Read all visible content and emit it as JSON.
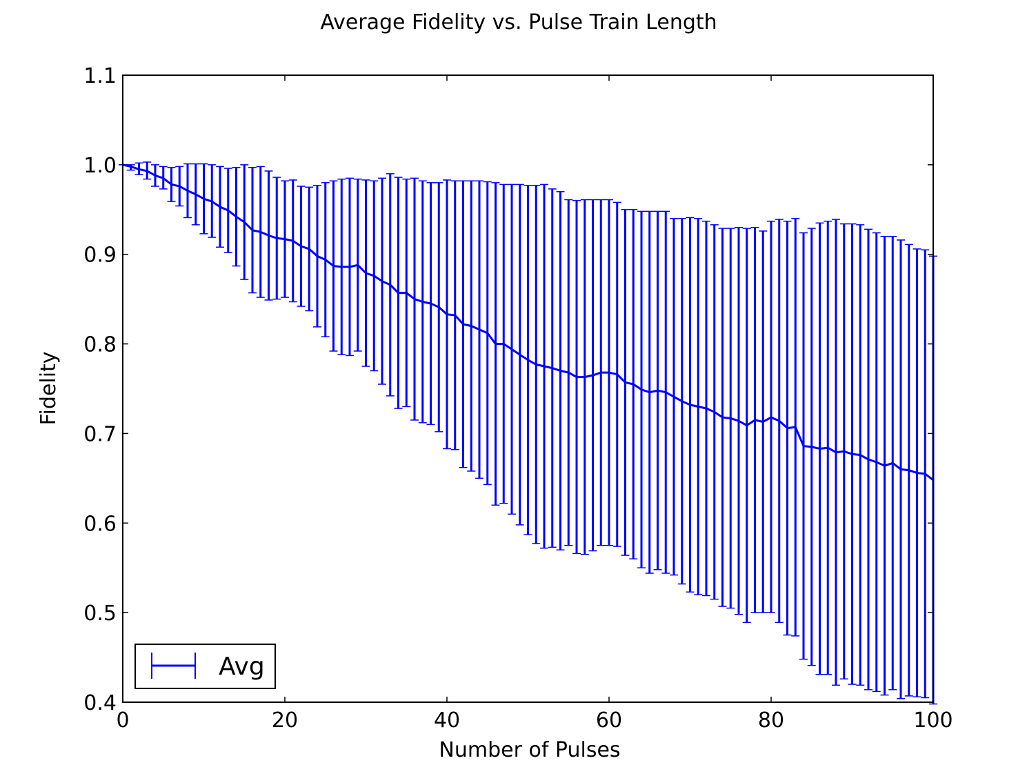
{
  "chart_data": {
    "type": "line",
    "title": "Average Fidelity vs. Pulse Train Length",
    "xlabel": "Number of Pulses",
    "ylabel": "Fidelity",
    "xlim": [
      0,
      100
    ],
    "ylim": [
      0.4,
      1.1
    ],
    "xticks": [
      "0",
      "20",
      "40",
      "60",
      "80",
      "100"
    ],
    "yticks": [
      "0.4",
      "0.5",
      "0.6",
      "0.7",
      "0.8",
      "0.9",
      "1.0",
      "1.1"
    ],
    "grid": false,
    "legend_position": "lower-left",
    "series_color": "#0000ff",
    "series": [
      {
        "name": "Avg",
        "x": [
          0,
          1,
          2,
          3,
          4,
          5,
          6,
          7,
          8,
          9,
          10,
          11,
          12,
          13,
          14,
          15,
          16,
          17,
          18,
          19,
          20,
          21,
          22,
          23,
          24,
          25,
          26,
          27,
          28,
          29,
          30,
          31,
          32,
          33,
          34,
          35,
          36,
          37,
          38,
          39,
          40,
          41,
          42,
          43,
          44,
          45,
          46,
          47,
          48,
          49,
          50,
          51,
          52,
          53,
          54,
          55,
          56,
          57,
          58,
          59,
          60,
          61,
          62,
          63,
          64,
          65,
          66,
          67,
          68,
          69,
          70,
          71,
          72,
          73,
          74,
          75,
          76,
          77,
          78,
          79,
          80,
          81,
          82,
          83,
          84,
          85,
          86,
          87,
          88,
          89,
          90,
          91,
          92,
          93,
          94,
          95,
          96,
          97,
          98,
          99,
          100
        ],
        "y": [
          1.0,
          0.998,
          0.995,
          0.993,
          0.988,
          0.985,
          0.978,
          0.976,
          0.971,
          0.967,
          0.962,
          0.959,
          0.953,
          0.949,
          0.942,
          0.936,
          0.927,
          0.925,
          0.921,
          0.918,
          0.917,
          0.915,
          0.909,
          0.906,
          0.898,
          0.894,
          0.887,
          0.886,
          0.886,
          0.888,
          0.879,
          0.876,
          0.87,
          0.866,
          0.857,
          0.857,
          0.85,
          0.847,
          0.845,
          0.841,
          0.833,
          0.832,
          0.822,
          0.82,
          0.816,
          0.812,
          0.8,
          0.8,
          0.794,
          0.788,
          0.782,
          0.777,
          0.775,
          0.773,
          0.77,
          0.768,
          0.763,
          0.763,
          0.765,
          0.768,
          0.768,
          0.766,
          0.757,
          0.755,
          0.749,
          0.746,
          0.748,
          0.746,
          0.741,
          0.736,
          0.732,
          0.73,
          0.728,
          0.724,
          0.718,
          0.717,
          0.714,
          0.709,
          0.715,
          0.713,
          0.718,
          0.714,
          0.706,
          0.707,
          0.686,
          0.685,
          0.683,
          0.684,
          0.679,
          0.68,
          0.677,
          0.676,
          0.671,
          0.668,
          0.664,
          0.667,
          0.66,
          0.659,
          0.656,
          0.655,
          0.648
        ],
        "err_upper": [
          1.0,
          1.0,
          1.002,
          1.003,
          1.0,
          0.998,
          0.997,
          0.998,
          1.001,
          1.001,
          1.001,
          1.0,
          0.998,
          0.996,
          0.997,
          1.0,
          0.997,
          0.998,
          0.993,
          0.986,
          0.982,
          0.983,
          0.976,
          0.975,
          0.977,
          0.98,
          0.982,
          0.984,
          0.985,
          0.984,
          0.983,
          0.982,
          0.985,
          0.99,
          0.986,
          0.984,
          0.985,
          0.982,
          0.98,
          0.98,
          0.983,
          0.982,
          0.982,
          0.982,
          0.982,
          0.981,
          0.98,
          0.978,
          0.978,
          0.978,
          0.977,
          0.977,
          0.978,
          0.973,
          0.97,
          0.961,
          0.96,
          0.961,
          0.961,
          0.961,
          0.961,
          0.958,
          0.95,
          0.95,
          0.948,
          0.948,
          0.948,
          0.948,
          0.94,
          0.94,
          0.941,
          0.94,
          0.937,
          0.933,
          0.929,
          0.929,
          0.93,
          0.929,
          0.93,
          0.926,
          0.937,
          0.939,
          0.937,
          0.94,
          0.924,
          0.929,
          0.935,
          0.937,
          0.939,
          0.934,
          0.934,
          0.933,
          0.928,
          0.924,
          0.92,
          0.92,
          0.916,
          0.911,
          0.906,
          0.905,
          0.898
        ],
        "err_lower": [
          1.0,
          0.994,
          0.989,
          0.984,
          0.976,
          0.973,
          0.959,
          0.954,
          0.941,
          0.933,
          0.923,
          0.919,
          0.908,
          0.902,
          0.887,
          0.872,
          0.857,
          0.852,
          0.849,
          0.85,
          0.852,
          0.847,
          0.842,
          0.837,
          0.819,
          0.808,
          0.792,
          0.788,
          0.787,
          0.792,
          0.775,
          0.77,
          0.755,
          0.742,
          0.728,
          0.73,
          0.715,
          0.712,
          0.71,
          0.702,
          0.683,
          0.682,
          0.662,
          0.658,
          0.65,
          0.643,
          0.62,
          0.622,
          0.61,
          0.598,
          0.587,
          0.577,
          0.572,
          0.573,
          0.57,
          0.575,
          0.566,
          0.565,
          0.569,
          0.575,
          0.575,
          0.574,
          0.564,
          0.56,
          0.55,
          0.544,
          0.548,
          0.544,
          0.542,
          0.532,
          0.523,
          0.52,
          0.519,
          0.515,
          0.507,
          0.505,
          0.498,
          0.489,
          0.5,
          0.5,
          0.5,
          0.489,
          0.475,
          0.474,
          0.448,
          0.441,
          0.431,
          0.431,
          0.419,
          0.426,
          0.42,
          0.419,
          0.414,
          0.412,
          0.408,
          0.414,
          0.404,
          0.407,
          0.406,
          0.405,
          0.398
        ]
      }
    ]
  }
}
